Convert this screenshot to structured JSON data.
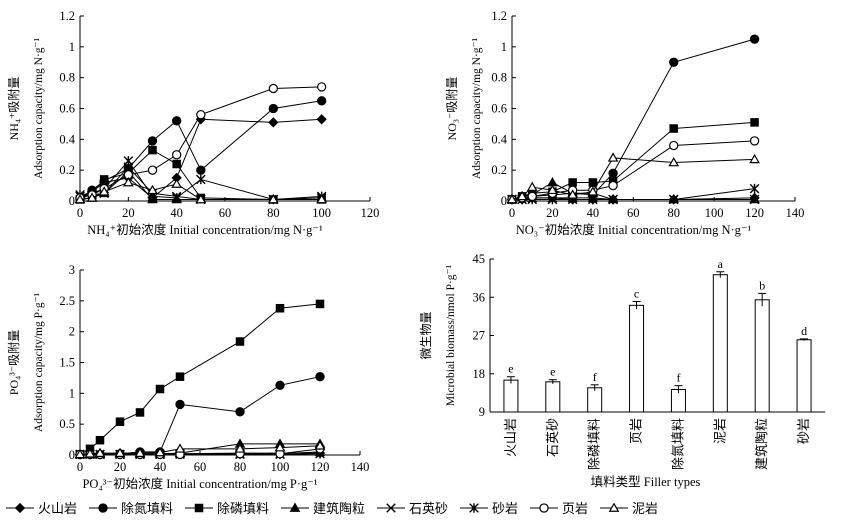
{
  "chart_data": [
    {
      "type": "line",
      "ylabel_cn": "NH₄⁺吸附量",
      "ylabel_en": "Adsorption capacity/mg N·g⁻¹",
      "xlabel": "NH₄⁺初始浓度 Initial concentration/mg N·g⁻¹",
      "xlim": [
        0,
        120
      ],
      "ylim": [
        0,
        1.2
      ],
      "xticks": [
        0,
        20,
        40,
        60,
        80,
        100,
        120
      ],
      "yticks": [
        0,
        0.2,
        0.4,
        0.6,
        0.8,
        1.0,
        1.2
      ],
      "series": [
        {
          "name": "火山岩",
          "x": [
            0,
            5,
            10,
            20,
            30,
            40,
            50,
            80,
            100
          ],
          "values": [
            0.02,
            0.06,
            0.12,
            0.15,
            0.02,
            0.15,
            0.53,
            0.51,
            0.53
          ]
        },
        {
          "name": "除氮填料",
          "x": [
            0,
            5,
            10,
            20,
            30,
            40,
            50,
            80,
            100
          ],
          "values": [
            0.02,
            0.07,
            0.13,
            0.21,
            0.39,
            0.52,
            0.2,
            0.6,
            0.65
          ]
        },
        {
          "name": "除磷填料",
          "x": [
            0,
            5,
            10,
            20,
            30,
            40,
            50,
            80,
            100
          ],
          "values": [
            0.01,
            0.05,
            0.14,
            0.18,
            0.33,
            0.24,
            0.02,
            0.01,
            0.01
          ]
        },
        {
          "name": "建筑陶粒",
          "x": [
            0,
            5,
            10,
            20,
            30,
            40,
            50,
            80,
            100
          ],
          "values": [
            0.01,
            0.02,
            0.05,
            0.19,
            0.01,
            0.01,
            0.01,
            0.01,
            0.01
          ]
        },
        {
          "name": "石英砂",
          "x": [
            0,
            5,
            10,
            20,
            30,
            40,
            50,
            80,
            100
          ],
          "values": [
            0.03,
            0.04,
            0.05,
            0.22,
            0.05,
            0.03,
            0.01,
            0.01,
            0.02
          ]
        },
        {
          "name": "砂岩",
          "x": [
            0,
            5,
            10,
            20,
            30,
            40,
            50,
            80,
            100
          ],
          "values": [
            0.04,
            0.05,
            0.08,
            0.26,
            0.03,
            0.02,
            0.14,
            0.01,
            0.03
          ]
        },
        {
          "name": "页岩",
          "x": [
            0,
            5,
            10,
            20,
            30,
            40,
            50,
            80,
            100
          ],
          "values": [
            0.02,
            0.04,
            0.08,
            0.17,
            0.2,
            0.3,
            0.56,
            0.73,
            0.74
          ]
        },
        {
          "name": "泥岩",
          "x": [
            0,
            5,
            10,
            20,
            30,
            40,
            50,
            80,
            100
          ],
          "values": [
            0.01,
            0.02,
            0.06,
            0.12,
            0.07,
            0.11,
            0.01,
            0.01,
            0.01
          ]
        }
      ]
    },
    {
      "type": "line",
      "ylabel_cn": "NO₃⁻吸附量",
      "ylabel_en": "Adsorption capacity/mg N·g⁻¹",
      "xlabel": "NO₃⁻初始浓度 Initial concentration/mg N·g⁻¹",
      "xlim": [
        0,
        140
      ],
      "ylim": [
        0,
        1.2
      ],
      "xticks": [
        0,
        20,
        40,
        60,
        80,
        100,
        120,
        140
      ],
      "yticks": [
        0,
        0.2,
        0.4,
        0.6,
        0.8,
        1.0,
        1.2
      ],
      "series": [
        {
          "name": "火山岩",
          "x": [
            0,
            5,
            10,
            20,
            30,
            40,
            50,
            80,
            120
          ],
          "values": [
            0.01,
            0.01,
            0.02,
            0.02,
            0.01,
            0.01,
            0.01,
            0.01,
            0.02
          ]
        },
        {
          "name": "除氮填料",
          "x": [
            0,
            5,
            10,
            20,
            30,
            40,
            50,
            80,
            120
          ],
          "values": [
            0.01,
            0.02,
            0.03,
            0.04,
            0.05,
            0.04,
            0.18,
            0.9,
            1.05
          ]
        },
        {
          "name": "除磷填料",
          "x": [
            0,
            5,
            10,
            20,
            30,
            40,
            50,
            80,
            120
          ],
          "values": [
            0.01,
            0.03,
            0.05,
            0.06,
            0.12,
            0.12,
            0.13,
            0.47,
            0.51
          ]
        },
        {
          "name": "建筑陶粒",
          "x": [
            0,
            5,
            10,
            20,
            30,
            40,
            50,
            80,
            120
          ],
          "values": [
            0.01,
            0.03,
            0.04,
            0.12,
            0.05,
            0.05,
            0.01,
            0.01,
            0.01
          ]
        },
        {
          "name": "石英砂",
          "x": [
            0,
            5,
            10,
            20,
            30,
            40,
            50,
            80,
            120
          ],
          "values": [
            0.01,
            0.01,
            0.02,
            0.02,
            0.02,
            0.02,
            0.01,
            0.01,
            0.01
          ]
        },
        {
          "name": "砂岩",
          "x": [
            0,
            5,
            10,
            20,
            30,
            40,
            50,
            80,
            120
          ],
          "values": [
            0.01,
            0.01,
            0.01,
            0.01,
            0.01,
            0.01,
            0.01,
            0.01,
            0.08
          ]
        },
        {
          "name": "页岩",
          "x": [
            0,
            5,
            10,
            20,
            30,
            40,
            50,
            80,
            120
          ],
          "values": [
            0.01,
            0.02,
            0.03,
            0.05,
            0.07,
            0.07,
            0.1,
            0.36,
            0.39
          ]
        },
        {
          "name": "泥岩",
          "x": [
            0,
            5,
            10,
            20,
            30,
            40,
            50,
            80,
            120
          ],
          "values": [
            0.01,
            0.03,
            0.09,
            0.07,
            0.04,
            0.06,
            0.28,
            0.25,
            0.27
          ]
        }
      ]
    },
    {
      "type": "line",
      "ylabel_cn": "PO₄³⁻吸附量",
      "ylabel_en": "Adsorption capacity/mg P·g⁻¹",
      "xlabel": "PO₄³⁻初始浓度 Initial concentration/mg P·g⁻¹",
      "xlim": [
        0,
        140
      ],
      "ylim": [
        0,
        3.0
      ],
      "xticks": [
        0,
        20,
        40,
        60,
        80,
        100,
        120,
        140
      ],
      "yticks": [
        0,
        0.5,
        1.0,
        1.5,
        2.0,
        2.5,
        3.0
      ],
      "series": [
        {
          "name": "火山岩",
          "x": [
            0,
            5,
            10,
            20,
            30,
            40,
            50,
            80,
            100,
            120
          ],
          "values": [
            0.01,
            0.01,
            0.01,
            0.02,
            0.02,
            0.02,
            0.02,
            0.03,
            0.03,
            0.03
          ]
        },
        {
          "name": "除氮填料",
          "x": [
            0,
            5,
            10,
            20,
            30,
            40,
            50,
            80,
            100,
            120
          ],
          "values": [
            0.01,
            0.01,
            0.01,
            0.02,
            0.05,
            0.05,
            0.82,
            0.7,
            1.13,
            1.27
          ]
        },
        {
          "name": "除磷填料",
          "x": [
            0,
            5,
            10,
            20,
            30,
            40,
            50,
            80,
            100,
            120
          ],
          "values": [
            0.01,
            0.1,
            0.24,
            0.54,
            0.69,
            1.07,
            1.27,
            1.84,
            2.38,
            2.45
          ]
        },
        {
          "name": "建筑陶粒",
          "x": [
            0,
            5,
            10,
            20,
            30,
            40,
            50,
            80,
            100,
            120
          ],
          "values": [
            0.01,
            0.01,
            0.01,
            0.02,
            0.02,
            0.02,
            0.03,
            0.18,
            0.18,
            0.18
          ]
        },
        {
          "name": "石英砂",
          "x": [
            0,
            5,
            10,
            20,
            30,
            40,
            50,
            80,
            100,
            120
          ],
          "values": [
            0.01,
            0.01,
            0.01,
            0.01,
            0.01,
            0.01,
            0.02,
            0.02,
            0.02,
            0.05
          ]
        },
        {
          "name": "砂岩",
          "x": [
            0,
            5,
            10,
            20,
            30,
            40,
            50,
            80,
            100,
            120
          ],
          "values": [
            0.01,
            0.01,
            0.01,
            0.01,
            0.01,
            0.01,
            0.01,
            0.01,
            0.01,
            0.02
          ]
        },
        {
          "name": "页岩",
          "x": [
            0,
            5,
            10,
            20,
            30,
            40,
            50,
            80,
            100,
            120
          ],
          "values": [
            0.01,
            0.01,
            0.01,
            0.01,
            0.01,
            0.01,
            0.01,
            0.02,
            0.02,
            0.1
          ]
        },
        {
          "name": "泥岩",
          "x": [
            0,
            5,
            10,
            20,
            30,
            40,
            50,
            80,
            100,
            120
          ],
          "values": [
            0.01,
            0.02,
            0.03,
            0.03,
            0.03,
            0.04,
            0.1,
            0.1,
            0.12,
            0.15
          ]
        }
      ]
    },
    {
      "type": "bar",
      "ylabel_cn": "微生物量",
      "ylabel_en": "Microbial biomass/nmol P·g⁻¹",
      "xlabel": "填料类型 Filler types",
      "ylim": [
        9,
        45
      ],
      "yticks": [
        9,
        18,
        27,
        36,
        45
      ],
      "categories": [
        "火山岩",
        "石英砂",
        "除磷填料",
        "页岩",
        "除氮填料",
        "泥岩",
        "建筑陶粒",
        "砂岩"
      ],
      "values": [
        16.5,
        16.1,
        14.7,
        34.1,
        14.3,
        41.3,
        35.4,
        26.0
      ],
      "errors": [
        0.8,
        0.5,
        0.7,
        0.9,
        0.9,
        0.7,
        1.5,
        0.2
      ],
      "labels": [
        "e",
        "e",
        "f",
        "c",
        "f",
        "a",
        "b",
        "d"
      ]
    }
  ],
  "legend": {
    "items": [
      {
        "name": "火山岩",
        "marker": "diamond"
      },
      {
        "name": "除氮填料",
        "marker": "circle"
      },
      {
        "name": "除磷填料",
        "marker": "square"
      },
      {
        "name": "建筑陶粒",
        "marker": "triangle"
      },
      {
        "name": "石英砂",
        "marker": "x"
      },
      {
        "name": "砂岩",
        "marker": "asterisk"
      },
      {
        "name": "页岩",
        "marker": "circle-open"
      },
      {
        "name": "泥岩",
        "marker": "triangle-open"
      }
    ]
  }
}
